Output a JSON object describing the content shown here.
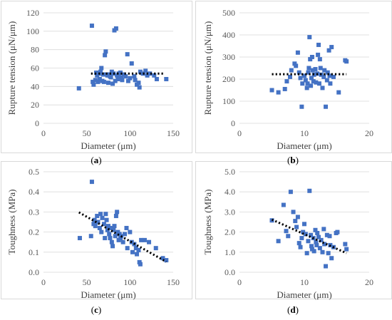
{
  "chart_data": [
    {
      "type": "scatter",
      "panel_label": "a",
      "title": "",
      "xlabel": "Diameter (μm)",
      "ylabel": "Rupture tension (μN/μm)",
      "xlim": [
        0,
        150
      ],
      "ylim": [
        0,
        120
      ],
      "xticks": [
        "0",
        "50",
        "100",
        "150"
      ],
      "yticks": [
        "0",
        "20",
        "40",
        "60",
        "80",
        "100",
        "120"
      ],
      "grid": "horizontal",
      "trendline": {
        "style": "dotted",
        "x": [
          55,
          140
        ],
        "y": [
          54,
          54
        ]
      },
      "series": [
        {
          "color": "#4472c4",
          "points": [
            [
              41,
              38
            ],
            [
              56,
              106
            ],
            [
              57,
              45
            ],
            [
              58,
              42
            ],
            [
              60,
              47
            ],
            [
              61,
              55
            ],
            [
              62,
              52
            ],
            [
              63,
              45
            ],
            [
              64,
              54
            ],
            [
              65,
              48
            ],
            [
              66,
              56
            ],
            [
              67,
              60
            ],
            [
              68,
              46
            ],
            [
              69,
              53
            ],
            [
              70,
              45
            ],
            [
              71,
              74
            ],
            [
              72,
              78
            ],
            [
              73,
              53
            ],
            [
              74,
              52
            ],
            [
              75,
              44
            ],
            [
              76,
              53
            ],
            [
              77,
              51
            ],
            [
              78,
              50
            ],
            [
              79,
              56
            ],
            [
              80,
              43
            ],
            [
              81,
              54
            ],
            [
              82,
              101
            ],
            [
              83,
              46
            ],
            [
              84,
              103
            ],
            [
              85,
              52
            ],
            [
              86,
              48
            ],
            [
              87,
              54
            ],
            [
              88,
              49
            ],
            [
              89,
              55
            ],
            [
              90,
              50
            ],
            [
              91,
              47
            ],
            [
              93,
              53
            ],
            [
              95,
              51
            ],
            [
              97,
              75
            ],
            [
              98,
              46
            ],
            [
              100,
              49
            ],
            [
              102,
              65
            ],
            [
              105,
              51
            ],
            [
              106,
              47
            ],
            [
              108,
              42
            ],
            [
              110,
              44
            ],
            [
              111,
              39
            ],
            [
              112,
              56
            ],
            [
              115,
              54
            ],
            [
              118,
              57
            ],
            [
              120,
              52
            ],
            [
              123,
              54
            ],
            [
              128,
              52
            ],
            [
              131,
              48
            ],
            [
              142,
              48
            ]
          ]
        }
      ]
    },
    {
      "type": "scatter",
      "panel_label": "b",
      "title": "",
      "xlabel": "Diameter (μm)",
      "ylabel": "Rupture tension (μN/μm)",
      "xlim": [
        0,
        20
      ],
      "ylim": [
        0,
        500
      ],
      "xticks": [
        "0",
        "10",
        "20"
      ],
      "yticks": [
        "0",
        "100",
        "200",
        "300",
        "400",
        "500"
      ],
      "grid": "horizontal",
      "trendline": {
        "style": "dotted",
        "x": [
          5,
          16.5
        ],
        "y": [
          222,
          222
        ]
      },
      "series": [
        {
          "color": "#4472c4",
          "points": [
            [
              5.0,
              150
            ],
            [
              6.0,
              140
            ],
            [
              7.0,
              155
            ],
            [
              7.3,
              190
            ],
            [
              7.8,
              210
            ],
            [
              8.0,
              240
            ],
            [
              8.5,
              270
            ],
            [
              8.7,
              260
            ],
            [
              9.0,
              320
            ],
            [
              9.2,
              230
            ],
            [
              9.4,
              205
            ],
            [
              9.6,
              75
            ],
            [
              9.7,
              180
            ],
            [
              10.0,
              215
            ],
            [
              10.2,
              195
            ],
            [
              10.4,
              160
            ],
            [
              10.5,
              180
            ],
            [
              10.6,
              230
            ],
            [
              10.7,
              250
            ],
            [
              10.8,
              390
            ],
            [
              10.9,
              290
            ],
            [
              11.0,
              170
            ],
            [
              11.1,
              205
            ],
            [
              11.2,
              300
            ],
            [
              11.3,
              240
            ],
            [
              11.4,
              190
            ],
            [
              11.5,
              220
            ],
            [
              11.7,
              245
            ],
            [
              11.8,
              185
            ],
            [
              12.0,
              225
            ],
            [
              12.1,
              310
            ],
            [
              12.2,
              355
            ],
            [
              12.3,
              180
            ],
            [
              12.4,
              290
            ],
            [
              12.5,
              250
            ],
            [
              12.6,
              220
            ],
            [
              12.8,
              160
            ],
            [
              13.0,
              210
            ],
            [
              13.1,
              240
            ],
            [
              13.3,
              75
            ],
            [
              13.5,
              195
            ],
            [
              13.6,
              230
            ],
            [
              13.8,
              330
            ],
            [
              13.9,
              215
            ],
            [
              14.0,
              180
            ],
            [
              14.2,
              345
            ],
            [
              14.5,
              210
            ],
            [
              15.3,
              140
            ],
            [
              16.3,
              285
            ],
            [
              16.5,
              280
            ]
          ]
        }
      ]
    },
    {
      "type": "scatter",
      "panel_label": "c",
      "title": "",
      "xlabel": "Diameter (μm)",
      "ylabel": "Toughness (MPa)",
      "xlim": [
        0,
        150
      ],
      "ylim": [
        0,
        0.5
      ],
      "xticks": [
        "0",
        "50",
        "100",
        "150"
      ],
      "yticks": [
        "0.0",
        "0.1",
        "0.2",
        "0.3",
        "0.4",
        "0.5"
      ],
      "grid": "horizontal",
      "trendline": {
        "style": "dotted",
        "x": [
          41,
          142
        ],
        "y": [
          0.298,
          0.052
        ]
      },
      "series": [
        {
          "color": "#4472c4",
          "points": [
            [
              42,
              0.17
            ],
            [
              55,
              0.18
            ],
            [
              56,
              0.45
            ],
            [
              58,
              0.24
            ],
            [
              59,
              0.26
            ],
            [
              60,
              0.23
            ],
            [
              62,
              0.28
            ],
            [
              63,
              0.25
            ],
            [
              65,
              0.22
            ],
            [
              66,
              0.29
            ],
            [
              67,
              0.2
            ],
            [
              68,
              0.27
            ],
            [
              70,
              0.24
            ],
            [
              71,
              0.17
            ],
            [
              72,
              0.29
            ],
            [
              73,
              0.26
            ],
            [
              74,
              0.21
            ],
            [
              75,
              0.23
            ],
            [
              76,
              0.19
            ],
            [
              77,
              0.17
            ],
            [
              78,
              0.22
            ],
            [
              79,
              0.15
            ],
            [
              80,
              0.13
            ],
            [
              81,
              0.21
            ],
            [
              82,
              0.23
            ],
            [
              83,
              0.18
            ],
            [
              84,
              0.28
            ],
            [
              85,
              0.3
            ],
            [
              86,
              0.2
            ],
            [
              87,
              0.16
            ],
            [
              88,
              0.19
            ],
            [
              89,
              0.17
            ],
            [
              90,
              0.18
            ],
            [
              92,
              0.15
            ],
            [
              94,
              0.19
            ],
            [
              96,
              0.22
            ],
            [
              97,
              0.12
            ],
            [
              100,
              0.2
            ],
            [
              102,
              0.15
            ],
            [
              103,
              0.1
            ],
            [
              105,
              0.14
            ],
            [
              107,
              0.12
            ],
            [
              108,
              0.09
            ],
            [
              110,
              0.11
            ],
            [
              111,
              0.05
            ],
            [
              112,
              0.04
            ],
            [
              113,
              0.16
            ],
            [
              117,
              0.16
            ],
            [
              122,
              0.15
            ],
            [
              130,
              0.12
            ],
            [
              138,
              0.07
            ],
            [
              142,
              0.06
            ]
          ]
        }
      ]
    },
    {
      "type": "scatter",
      "panel_label": "d",
      "title": "",
      "xlabel": "Diameter (μm)",
      "ylabel": "Toughness (MPa)",
      "xlim": [
        0,
        20
      ],
      "ylim": [
        0,
        5.0
      ],
      "xticks": [
        "0",
        "10",
        "20"
      ],
      "yticks": [
        "0.0",
        "1.0",
        "2.0",
        "3.0",
        "4.0",
        "5.0"
      ],
      "grid": "horizontal",
      "trendline": {
        "style": "dotted",
        "x": [
          5,
          16.5
        ],
        "y": [
          2.62,
          0.95
        ]
      },
      "series": [
        {
          "color": "#4472c4",
          "points": [
            [
              5.0,
              2.58
            ],
            [
              6.0,
              1.55
            ],
            [
              6.8,
              3.35
            ],
            [
              7.2,
              2.05
            ],
            [
              7.5,
              1.8
            ],
            [
              7.9,
              4.0
            ],
            [
              8.3,
              3.0
            ],
            [
              8.6,
              2.55
            ],
            [
              8.8,
              2.25
            ],
            [
              9.0,
              2.75
            ],
            [
              9.2,
              1.45
            ],
            [
              9.4,
              1.25
            ],
            [
              9.6,
              1.7
            ],
            [
              9.8,
              2.0
            ],
            [
              10.0,
              2.4
            ],
            [
              10.2,
              1.9
            ],
            [
              10.4,
              0.95
            ],
            [
              10.6,
              1.55
            ],
            [
              10.8,
              4.05
            ],
            [
              11.0,
              1.85
            ],
            [
              11.1,
              1.3
            ],
            [
              11.2,
              1.15
            ],
            [
              11.4,
              1.7
            ],
            [
              11.5,
              1.05
            ],
            [
              11.7,
              2.1
            ],
            [
              11.8,
              1.5
            ],
            [
              11.9,
              1.35
            ],
            [
              12.0,
              1.95
            ],
            [
              12.2,
              1.75
            ],
            [
              12.4,
              1.2
            ],
            [
              12.6,
              1.6
            ],
            [
              12.8,
              1.0
            ],
            [
              13.0,
              2.15
            ],
            [
              13.1,
              1.4
            ],
            [
              13.3,
              0.3
            ],
            [
              13.5,
              1.85
            ],
            [
              13.7,
              0.95
            ],
            [
              13.9,
              1.8
            ],
            [
              14.0,
              1.35
            ],
            [
              14.2,
              0.7
            ],
            [
              14.5,
              1.25
            ],
            [
              14.9,
              1.95
            ],
            [
              15.1,
              2.0
            ],
            [
              16.3,
              1.4
            ],
            [
              16.5,
              1.15
            ]
          ]
        }
      ]
    }
  ]
}
